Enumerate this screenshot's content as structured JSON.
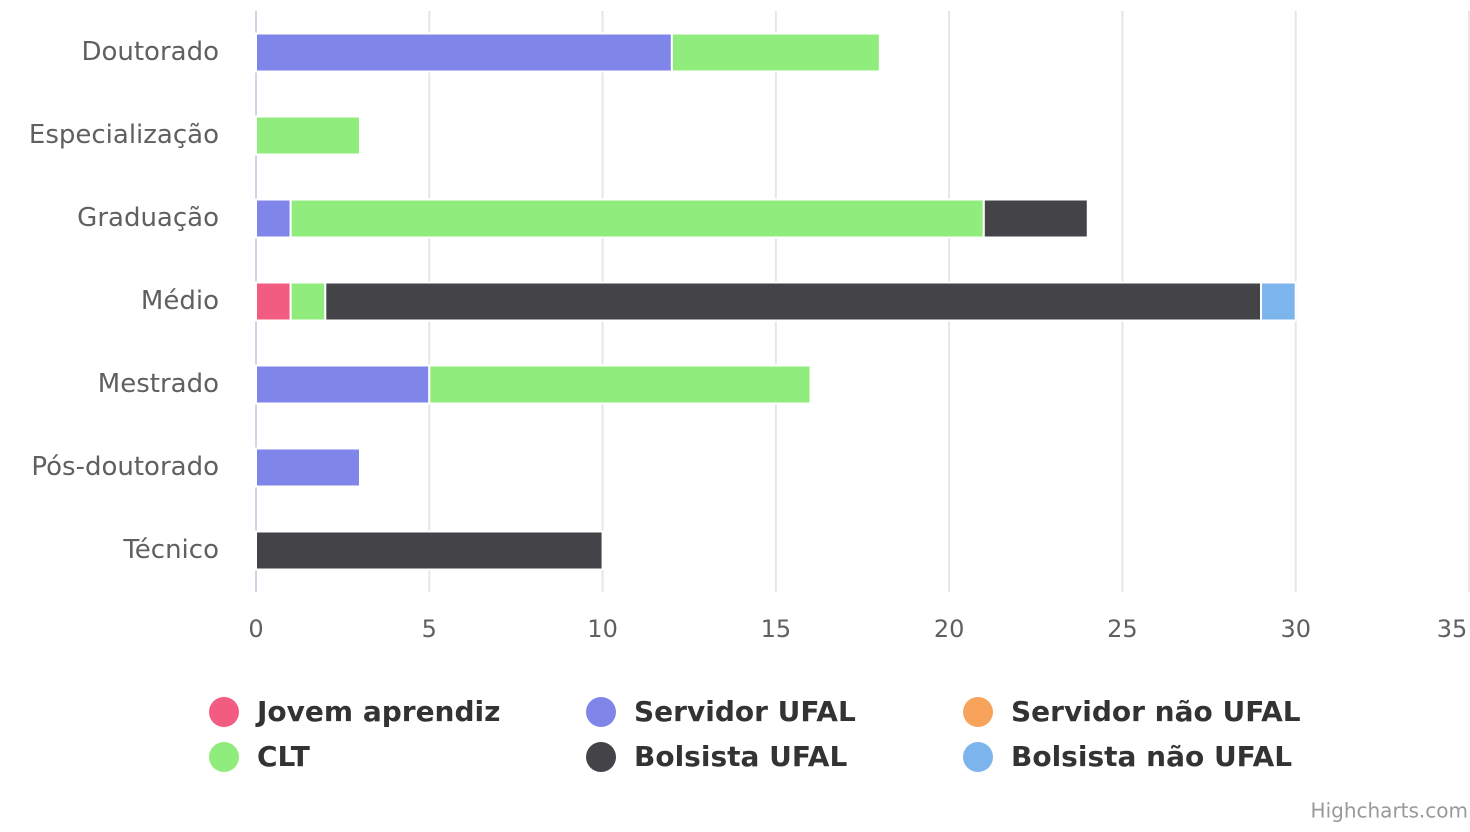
{
  "chart_data": {
    "type": "bar",
    "stacked": true,
    "categories": [
      "Doutorado",
      "Especialização",
      "Graduação",
      "Médio",
      "Mestrado",
      "Pós-doutorado",
      "Técnico"
    ],
    "series": [
      {
        "name": "Jovem aprendiz",
        "color": "#f15c80",
        "values": [
          0,
          0,
          0,
          1,
          0,
          0,
          0
        ]
      },
      {
        "name": "Servidor UFAL",
        "color": "#8085e9",
        "values": [
          12,
          0,
          1,
          0,
          5,
          3,
          0
        ]
      },
      {
        "name": "Servidor não UFAL",
        "color": "#f7a35c",
        "values": [
          0,
          0,
          0,
          0,
          0,
          0,
          0
        ]
      },
      {
        "name": "CLT",
        "color": "#90ed7d",
        "values": [
          6,
          3,
          20,
          1,
          11,
          0,
          0
        ]
      },
      {
        "name": "Bolsista UFAL",
        "color": "#434348",
        "values": [
          0,
          0,
          3,
          27,
          0,
          0,
          10
        ]
      },
      {
        "name": "Bolsista não UFAL",
        "color": "#7cb5ec",
        "values": [
          0,
          0,
          0,
          1,
          0,
          0,
          0
        ]
      }
    ],
    "xlim": [
      0,
      35
    ],
    "xticks": [
      0,
      5,
      10,
      15,
      20,
      25,
      30,
      35
    ],
    "grid": true,
    "legend": "bottom",
    "credits": "Highcharts.com"
  }
}
